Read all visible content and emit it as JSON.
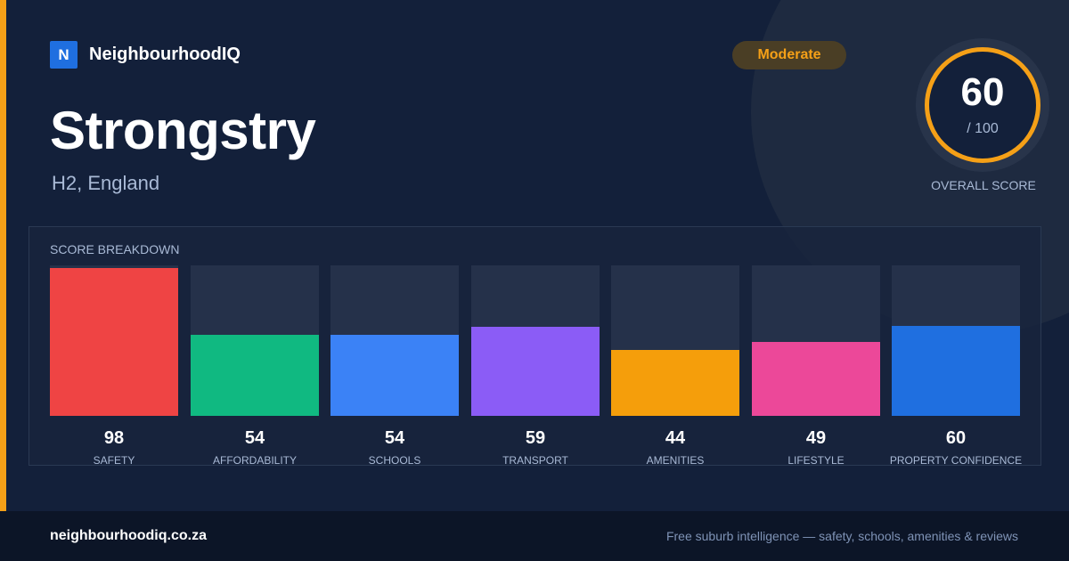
{
  "brand": {
    "logo_letter": "N",
    "name": "NeighbourhoodIQ"
  },
  "suburb": {
    "name": "Strongstry",
    "location": "H2, England"
  },
  "rating": {
    "label": "Moderate"
  },
  "overall": {
    "score": "60",
    "out_of": "/ 100",
    "caption": "OVERALL SCORE",
    "ring_color": "#f5a017"
  },
  "breakdown": {
    "title": "SCORE BREAKDOWN",
    "items": [
      {
        "label": "SAFETY",
        "value": "98",
        "score": 98,
        "color": "#ef4444"
      },
      {
        "label": "AFFORDABILITY",
        "value": "54",
        "score": 54,
        "color": "#10b981"
      },
      {
        "label": "SCHOOLS",
        "value": "54",
        "score": 54,
        "color": "#3b82f6"
      },
      {
        "label": "TRANSPORT",
        "value": "59",
        "score": 59,
        "color": "#8b5cf6"
      },
      {
        "label": "AMENITIES",
        "value": "44",
        "score": 44,
        "color": "#f59e0b"
      },
      {
        "label": "LIFESTYLE",
        "value": "49",
        "score": 49,
        "color": "#ec4899"
      },
      {
        "label": "PROPERTY CONFIDENCE",
        "value": "60",
        "score": 60,
        "color": "#1f6fe0"
      }
    ]
  },
  "footer": {
    "domain": "neighbourhoodiq.co.za",
    "tagline": "Free suburb intelligence — safety, schools, amenities & reviews"
  },
  "colors": {
    "accent": "#f5a017",
    "background": "#13203a"
  }
}
